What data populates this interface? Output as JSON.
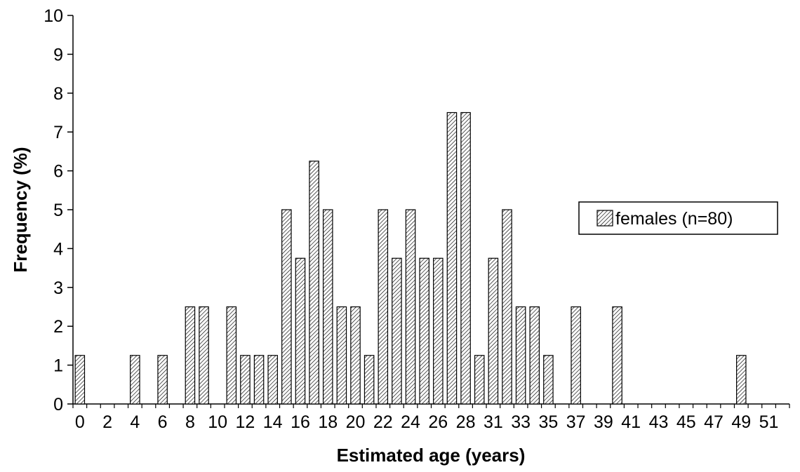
{
  "chart_data": {
    "type": "bar",
    "x_label": "Estimated age (years)",
    "y_label": "Frequency (%)",
    "categories": [
      "0",
      null,
      "2",
      null,
      "4",
      null,
      "6",
      null,
      "8",
      null,
      "10",
      null,
      "12",
      null,
      "14",
      null,
      "16",
      null,
      "18",
      null,
      "20",
      null,
      "22",
      null,
      "24",
      null,
      "26",
      null,
      "28",
      null,
      "31",
      null,
      "33",
      null,
      "35",
      null,
      "37",
      null,
      "39",
      null,
      "41",
      null,
      "43",
      null,
      "45",
      null,
      "47",
      null,
      "49",
      null,
      "51",
      null
    ],
    "series": [
      {
        "name": "females (n=80)",
        "color": "#000000",
        "values": [
          1.25,
          0,
          0,
          0,
          1.25,
          0,
          1.25,
          0,
          2.5,
          2.5,
          0,
          2.5,
          1.25,
          1.25,
          1.25,
          5,
          3.75,
          6.25,
          5,
          2.5,
          2.5,
          1.25,
          5,
          3.75,
          5,
          3.75,
          3.75,
          7.5,
          7.5,
          1.25,
          3.75,
          5,
          2.5,
          2.5,
          1.25,
          0,
          2.5,
          0,
          0,
          2.5,
          0,
          0,
          0,
          0,
          0,
          0,
          0,
          0,
          1.25,
          0,
          0,
          0
        ]
      }
    ],
    "ylim": [
      0,
      10
    ],
    "yticks": [
      0,
      1,
      2,
      3,
      4,
      5,
      6,
      7,
      8,
      9,
      10
    ],
    "hatch": true,
    "legend": "right"
  }
}
